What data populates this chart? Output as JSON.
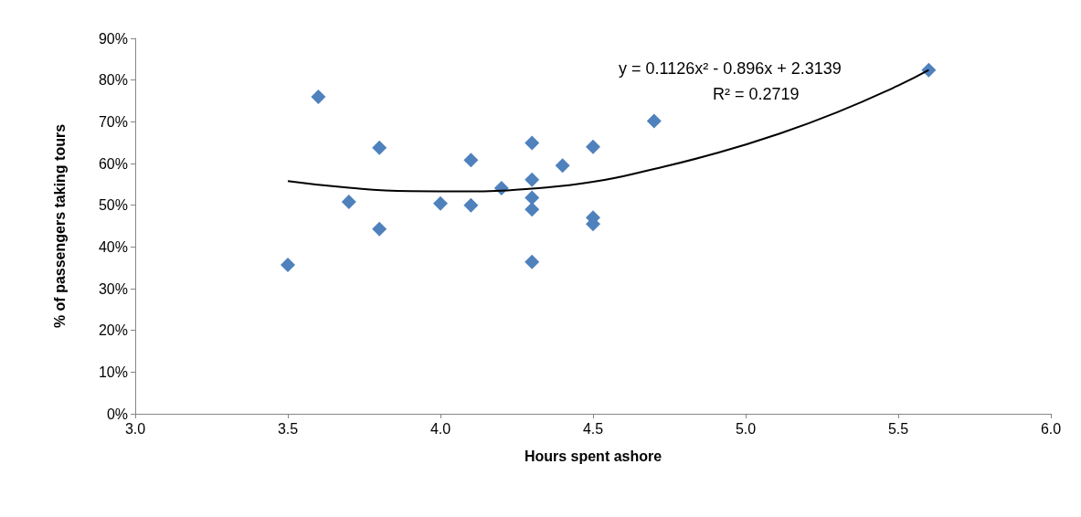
{
  "chart_data": {
    "type": "scatter",
    "xlabel": "Hours spent ashore",
    "ylabel": "% of passengers taking tours",
    "annotations": [
      "y = 0.1126x² - 0.896x + 2.3139",
      "R² = 0.2719"
    ],
    "xlim": [
      3,
      6
    ],
    "xticks": [
      {
        "value": 3,
        "label": "3.0"
      },
      {
        "value": 3.5,
        "label": "3.5"
      },
      {
        "value": 4,
        "label": "4.0"
      },
      {
        "value": 4.5,
        "label": "4.5"
      },
      {
        "value": 5,
        "label": "5.0"
      },
      {
        "value": 5.5,
        "label": "5.5"
      },
      {
        "value": 6,
        "label": "6.0"
      }
    ],
    "ylim": [
      0,
      90
    ],
    "yticks": [
      {
        "value": 0,
        "label": "0%"
      },
      {
        "value": 10,
        "label": "10%"
      },
      {
        "value": 20,
        "label": "20%"
      },
      {
        "value": 30,
        "label": "30%"
      },
      {
        "value": 40,
        "label": "40%"
      },
      {
        "value": 50,
        "label": "50%"
      },
      {
        "value": 60,
        "label": "60%"
      },
      {
        "value": 70,
        "label": "70%"
      },
      {
        "value": 80,
        "label": "80%"
      },
      {
        "value": 90,
        "label": "90%"
      }
    ],
    "grid": false,
    "series": [
      {
        "marker": "diamond",
        "color": "#4f81bd",
        "x": [
          3.5,
          3.6,
          3.7,
          3.8,
          3.8,
          4.0,
          4.1,
          4.1,
          4.2,
          4.3,
          4.3,
          4.3,
          4.3,
          4.3,
          4.4,
          4.5,
          4.5,
          4.5,
          4.7,
          5.6
        ],
        "values": [
          35.7,
          76.0,
          50.8,
          63.8,
          44.3,
          50.4,
          60.8,
          50.0,
          54.1,
          64.9,
          56.1,
          51.8,
          49.0,
          36.4,
          59.5,
          64.0,
          47.0,
          45.5,
          70.2,
          82.4
        ]
      },
      {
        "type": "line",
        "marker": "none",
        "line_style": "solid",
        "color": "#000000",
        "x": [
          3.5,
          3.7,
          3.9,
          4.1,
          4.3,
          4.5,
          4.7,
          4.9,
          5.1,
          5.3,
          5.5,
          5.6
        ],
        "values": [
          55.8,
          54.2,
          53.4,
          53.3,
          54.0,
          55.6,
          58.7,
          62.4,
          66.9,
          72.3,
          78.7,
          82.4
        ]
      }
    ]
  }
}
